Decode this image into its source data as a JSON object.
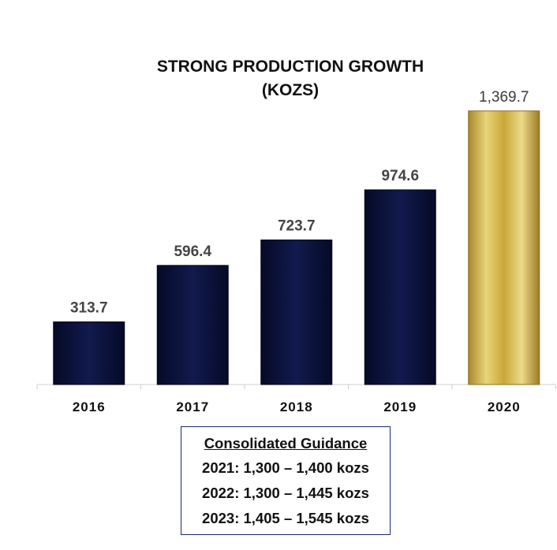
{
  "chart_data": {
    "type": "bar",
    "title": "STRONG PRODUCTION GROWTH",
    "subtitle": "(KOZS)",
    "categories": [
      "2016",
      "2017",
      "2018",
      "2019",
      "2020"
    ],
    "values": [
      313.7,
      596.4,
      723.7,
      974.6,
      1369.7
    ],
    "value_labels": [
      "313.7",
      "596.4",
      "723.7",
      "974.6",
      "1,369.7"
    ],
    "xlabel": "",
    "ylabel": "",
    "grid": false,
    "colors": {
      "bar": "#0d1440",
      "highlight_bar": "#d4b84a",
      "label_dark": "#444444",
      "label_highlight": "#3a3a3a"
    },
    "highlight_index": 4
  },
  "guidance": {
    "header": "Consolidated Guidance",
    "lines": [
      "2021: 1,300 – 1,400 kozs",
      "2022: 1,300 – 1,445 kozs",
      "2023: 1,405 – 1,545 kozs"
    ]
  }
}
